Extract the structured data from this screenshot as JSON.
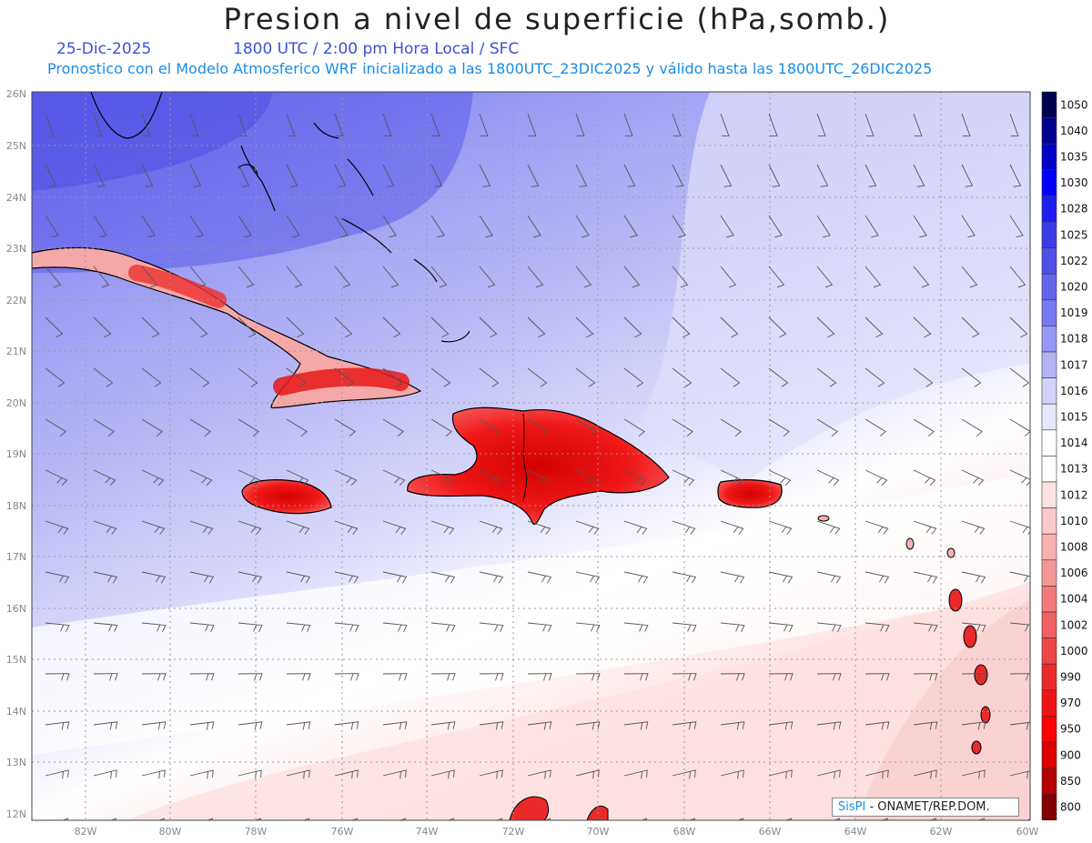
{
  "header": {
    "title": "Presion a nivel de superficie (hPa,somb.)",
    "date": "25-Dic-2025",
    "time": "1800 UTC / 2:00 pm Hora Local / SFC",
    "subtitle": "Pronostico con el Modelo Atmosferico WRF inicializado a las 1800UTC_23DIC2025 y válido hasta las  1800UTC_26DIC2025"
  },
  "axes": {
    "lat_labels": [
      "26N",
      "25N",
      "24N",
      "23N",
      "22N",
      "21N",
      "20N",
      "19N",
      "18N",
      "17N",
      "16N",
      "15N",
      "14N",
      "13N",
      "12N"
    ],
    "lon_labels": [
      "82W",
      "80W",
      "78W",
      "76W",
      "74W",
      "72W",
      "70W",
      "68W",
      "66W",
      "64W",
      "62W",
      "60W"
    ]
  },
  "legend": {
    "levels": [
      {
        "label": "1050",
        "color": "#000050"
      },
      {
        "label": "1040",
        "color": "#00008c"
      },
      {
        "label": "1035",
        "color": "#0000c8"
      },
      {
        "label": "1030",
        "color": "#0000ff"
      },
      {
        "label": "1028",
        "color": "#1e1ef0"
      },
      {
        "label": "1025",
        "color": "#3c3ce6"
      },
      {
        "label": "1022",
        "color": "#5050e6"
      },
      {
        "label": "1020",
        "color": "#6464eb"
      },
      {
        "label": "1019",
        "color": "#7878f0"
      },
      {
        "label": "1018",
        "color": "#9696f5"
      },
      {
        "label": "1017",
        "color": "#b4b4f5"
      },
      {
        "label": "1016",
        "color": "#d2d2fa"
      },
      {
        "label": "1015",
        "color": "#e6e6fc"
      },
      {
        "label": "1014",
        "color": "#ffffff"
      },
      {
        "label": "1013",
        "color": "#ffffff"
      },
      {
        "label": "1012",
        "color": "#fde2e2"
      },
      {
        "label": "1010",
        "color": "#facaca"
      },
      {
        "label": "1008",
        "color": "#f7b0b0"
      },
      {
        "label": "1006",
        "color": "#f59696"
      },
      {
        "label": "1004",
        "color": "#f27a7a"
      },
      {
        "label": "1002",
        "color": "#f06060"
      },
      {
        "label": "1000",
        "color": "#ed4646"
      },
      {
        "label": "990",
        "color": "#eb2a2a"
      },
      {
        "label": "970",
        "color": "#f01414"
      },
      {
        "label": "950",
        "color": "#ff0000"
      },
      {
        "label": "900",
        "color": "#dc0000"
      },
      {
        "label": "850",
        "color": "#b40000"
      },
      {
        "label": "800",
        "color": "#820000"
      }
    ]
  },
  "credit": {
    "brand": "SisPI",
    "rest": " - ONAMET/REP.DOM."
  }
}
